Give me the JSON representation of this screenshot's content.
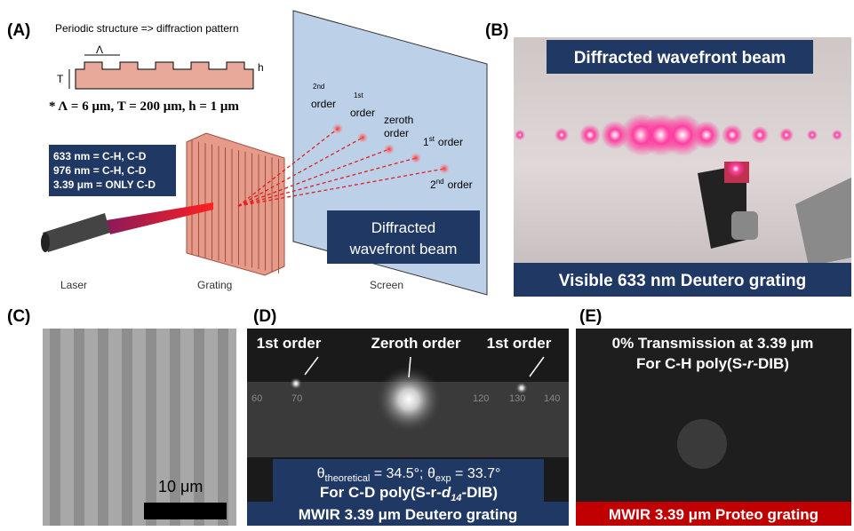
{
  "panel_a": {
    "label": "(A)",
    "caption": "Periodic structure => diffraction pattern",
    "lambda": "Λ",
    "t": "T",
    "h": "h",
    "params": "* Λ = 6 μm, T = 200 μm, h = 1 μm",
    "info": [
      "633 nm = C-H, C-D",
      "976 nm = C-H, C-D",
      "3.39 μm = ONLY C-D"
    ],
    "orders": [
      {
        "sup": "2",
        "suffix": "nd",
        "word": "order"
      },
      {
        "sup": "1",
        "suffix": "st",
        "word": "order"
      },
      {
        "word": "zeroth",
        "word2": "order"
      },
      {
        "sup": "1",
        "suffix": "st",
        "word": "order"
      },
      {
        "sup": "2",
        "suffix": "nd",
        "word": "order"
      }
    ],
    "screen_box": [
      "Diffracted",
      "wavefront beam"
    ],
    "laser": "Laser",
    "grating": "Grating",
    "screen": "Screen"
  },
  "panel_b": {
    "label": "(B)",
    "title": "Diffracted wavefront beam",
    "caption": "Visible 633 nm Deutero grating"
  },
  "panel_c": {
    "label": "(C)",
    "scale": "10 μm"
  },
  "panel_d": {
    "label": "(D)",
    "orders": [
      "1st order",
      "Zeroth order",
      "1st order"
    ],
    "ruler": [
      "60",
      "70",
      "120",
      "130",
      "140"
    ],
    "eq": {
      "theta1": "θ",
      "sub1": "theoretical",
      "mid": " = 34.5°; θ",
      "sub2": "exp",
      "end": " = 33.7°"
    },
    "polymer": {
      "pre": "For C-D poly(S-r-",
      "d": "d",
      "sub": "14",
      "post": "-DIB)"
    },
    "caption": "MWIR 3.39 μm Deutero grating"
  },
  "panel_e": {
    "label": "(E)",
    "line1": "0% Transmission at 3.39 μm",
    "line2": {
      "pre": "For C-H poly(S-",
      "r": "r",
      "post": "-DIB)"
    },
    "caption": "MWIR 3.39 μm Proteo grating"
  }
}
